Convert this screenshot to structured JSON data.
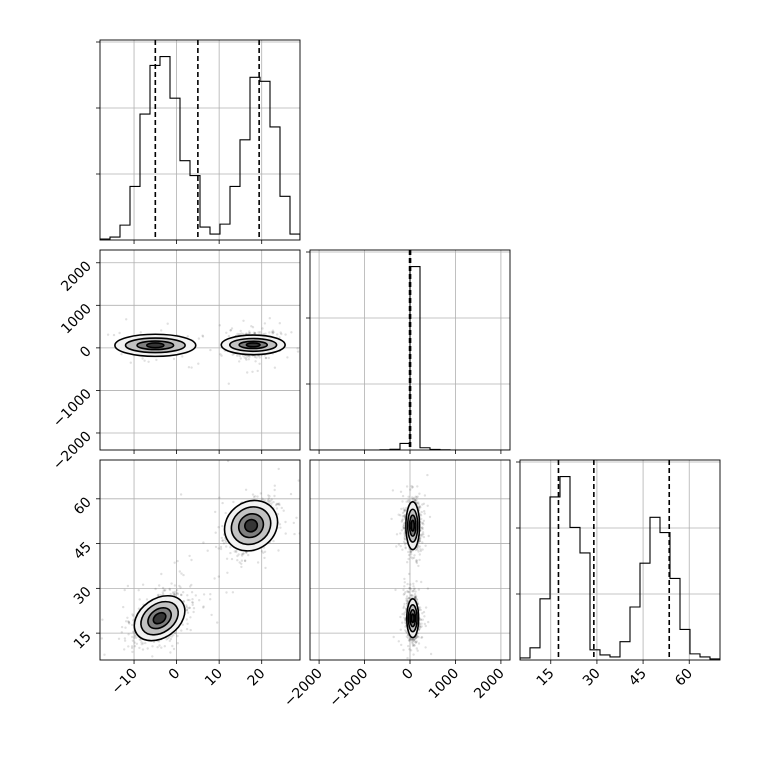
{
  "chart_data": [
    {
      "panel": "hist-x",
      "type": "bar",
      "style": "step histogram",
      "xlim": [
        -18,
        29
      ],
      "bin_edges": [
        -18,
        -15.65,
        -13.3,
        -10.95,
        -8.6,
        -6.25,
        -3.9,
        -1.55,
        0.8,
        3.15,
        5.5,
        7.85,
        10.2,
        12.55,
        14.9,
        17.25,
        19.6,
        21.95,
        24.3,
        26.65,
        29
      ],
      "values": [
        1,
        3,
        15,
        54,
        127,
        176,
        185,
        143,
        80,
        65,
        13,
        6,
        16,
        54,
        101,
        164,
        160,
        114,
        44,
        6
      ],
      "quantile_lines": [
        -5,
        5,
        19.4
      ],
      "grid": true
    },
    {
      "panel": "hist-y",
      "type": "bar",
      "style": "step histogram",
      "xlim": [
        -2200,
        2200
      ],
      "bin_edges": [
        -2200,
        -1980,
        -1760,
        -1540,
        -1320,
        -1100,
        -880,
        -660,
        -440,
        -220,
        0,
        220,
        440,
        660,
        880,
        1100,
        1320,
        1540,
        1760,
        1980,
        2200
      ],
      "values": [
        0,
        0,
        0,
        0,
        0,
        0,
        0,
        1,
        4,
        35,
        980,
        12,
        3,
        1,
        0,
        0,
        0,
        0,
        0,
        0
      ],
      "quantile_lines": [
        -10,
        0,
        12
      ],
      "grid": true
    },
    {
      "panel": "hist-z",
      "type": "bar",
      "style": "step histogram",
      "xlim": [
        5,
        70
      ],
      "bin_edges": [
        5,
        8.25,
        11.5,
        14.75,
        18,
        21.25,
        24.5,
        27.75,
        31,
        34.25,
        37.5,
        40.75,
        44,
        47.25,
        50.5,
        53.75,
        57,
        60.25,
        63.5,
        66.75,
        70
      ],
      "values": [
        2,
        12,
        60,
        160,
        180,
        130,
        105,
        10,
        5,
        3,
        18,
        52,
        95,
        140,
        125,
        80,
        30,
        6,
        3,
        1
      ],
      "quantile_lines": [
        17.5,
        29,
        53.5
      ],
      "grid": true
    },
    {
      "panel": "scatter-x-y",
      "type": "scatter",
      "style": "2d density with contours",
      "xlim": [
        -18,
        29
      ],
      "ylim": [
        -2400,
        2300
      ],
      "clusters": [
        {
          "center": [
            -5,
            60
          ],
          "sx": 2.8,
          "sy": 70,
          "n": 900,
          "contours": [
            [
              9.5,
              260
            ],
            [
              7,
              170
            ],
            [
              4.3,
              100
            ],
            [
              2,
              55
            ]
          ]
        },
        {
          "center": [
            18,
            70
          ],
          "sx": 2.6,
          "sy": 120,
          "n": 900,
          "contours": [
            [
              7.5,
              230
            ],
            [
              5.5,
              150
            ],
            [
              3.3,
              85
            ],
            [
              1.6,
              45
            ]
          ]
        }
      ],
      "grid": true
    },
    {
      "panel": "scatter-x-z",
      "type": "scatter",
      "style": "2d density with contours",
      "xlim": [
        -18,
        29
      ],
      "ylim": [
        6,
        73
      ],
      "clusters": [
        {
          "center": [
            -4,
            20
          ],
          "sx": 3.5,
          "sy": 3.5,
          "n": 900,
          "contours": [
            [
              6.5,
              6.5
            ],
            [
              4.8,
              4.8
            ],
            [
              3,
              3
            ],
            [
              1.6,
              1.6
            ]
          ]
        },
        {
          "center": [
            17.5,
            51
          ],
          "sx": 3.2,
          "sy": 4,
          "n": 900,
          "contours": [
            [
              6.5,
              8
            ],
            [
              4.8,
              6
            ],
            [
              3,
              3.8
            ],
            [
              1.5,
              2
            ]
          ]
        }
      ],
      "tilt_deg": 35,
      "grid": true
    },
    {
      "panel": "scatter-y-z",
      "type": "scatter",
      "style": "2d density with contours",
      "xlim": [
        -2200,
        2200
      ],
      "ylim": [
        6,
        73
      ],
      "clusters": [
        {
          "center": [
            60,
            51
          ],
          "sx": 90,
          "sy": 4,
          "n": 900,
          "contours": [
            [
              150,
              8
            ],
            [
              110,
              5.5
            ],
            [
              70,
              3.5
            ],
            [
              35,
              1.8
            ]
          ]
        },
        {
          "center": [
            60,
            20
          ],
          "sx": 70,
          "sy": 3.5,
          "n": 900,
          "contours": [
            [
              130,
              6.5
            ],
            [
              95,
              4.5
            ],
            [
              60,
              2.8
            ],
            [
              30,
              1.4
            ]
          ]
        }
      ],
      "grid": true
    }
  ],
  "axes": {
    "y_panel1_ticks": [
      "2000",
      "1000",
      "0",
      "−1000",
      "−2000"
    ],
    "y_panel1_values": [
      2000,
      1000,
      0,
      -1000,
      -2000
    ],
    "y_panel2_ticks": [
      "60",
      "45",
      "30",
      "15"
    ],
    "y_panel2_values": [
      60,
      45,
      30,
      15
    ],
    "x_col0_ticks": [
      "−10",
      "0",
      "10",
      "20"
    ],
    "x_col0_values": [
      -10,
      0,
      10,
      20
    ],
    "x_col1_ticks": [
      "−2000",
      "−1000",
      "0",
      "1000",
      "2000"
    ],
    "x_col1_values": [
      -2000,
      -1000,
      0,
      1000,
      2000
    ],
    "x_col2_ticks": [
      "15",
      "30",
      "45",
      "60"
    ],
    "x_col2_values": [
      15,
      30,
      45,
      60
    ]
  }
}
